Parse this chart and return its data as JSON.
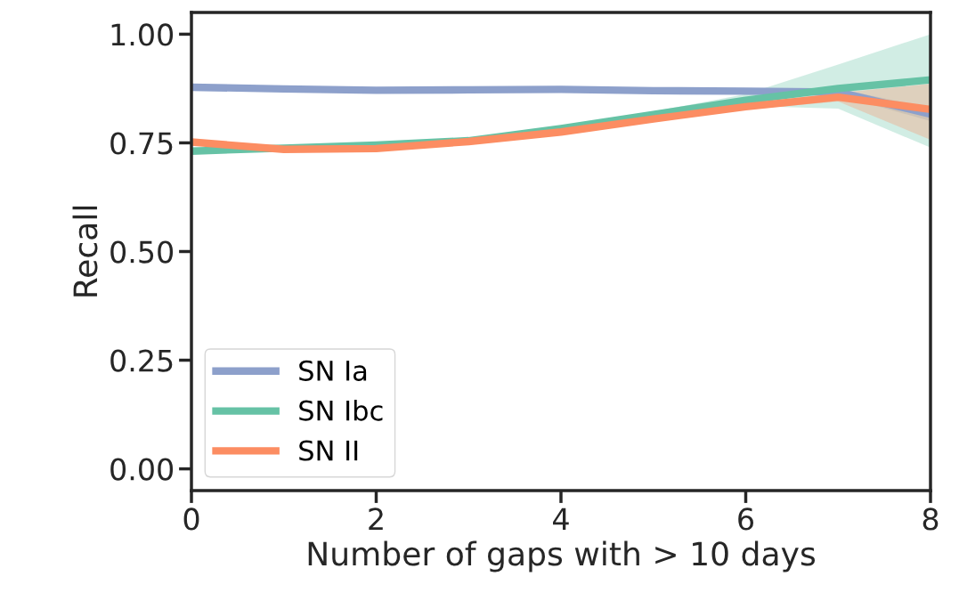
{
  "chart_data": {
    "type": "line",
    "xlabel": "Number of gaps with > 10 days",
    "ylabel": "Recall",
    "x": [
      0,
      1,
      2,
      3,
      4,
      5,
      6,
      7,
      8
    ],
    "xlim": [
      0,
      8
    ],
    "xticks": [
      0,
      2,
      4,
      6,
      8
    ],
    "ylim": [
      -0.05,
      1.05
    ],
    "yticks": [
      {
        "value": 0,
        "label": "0.00"
      },
      {
        "value": 0.25,
        "label": "0.25"
      },
      {
        "value": 0.5,
        "label": "0.50"
      },
      {
        "value": 0.75,
        "label": "0.75"
      },
      {
        "value": 1,
        "label": "1.00"
      }
    ],
    "grid": false,
    "legend": "bottom left",
    "line_style": "solid",
    "marker": "none",
    "series": [
      {
        "name": "SN Ia",
        "color": "#8da0cb",
        "values": [
          0.878,
          0.874,
          0.871,
          0.872,
          0.873,
          0.87,
          0.869,
          0.867,
          0.816
        ],
        "lower": [
          0.876,
          0.872,
          0.869,
          0.87,
          0.871,
          0.868,
          0.866,
          0.86,
          0.8
        ],
        "upper": [
          0.88,
          0.876,
          0.873,
          0.874,
          0.875,
          0.872,
          0.872,
          0.875,
          0.83
        ]
      },
      {
        "name": "SN Ibc",
        "color": "#66c2a5",
        "values": [
          0.731,
          0.738,
          0.745,
          0.755,
          0.783,
          0.815,
          0.848,
          0.875,
          0.895
        ],
        "lower": [
          0.727,
          0.734,
          0.741,
          0.751,
          0.779,
          0.808,
          0.835,
          0.829,
          0.739
        ],
        "upper": [
          0.735,
          0.742,
          0.749,
          0.759,
          0.787,
          0.822,
          0.862,
          0.93,
          1.0
        ]
      },
      {
        "name": "SN II",
        "color": "#fc8d62",
        "values": [
          0.752,
          0.735,
          0.737,
          0.753,
          0.775,
          0.805,
          0.833,
          0.855,
          0.827
        ],
        "lower": [
          0.749,
          0.732,
          0.734,
          0.75,
          0.772,
          0.8,
          0.826,
          0.845,
          0.757
        ],
        "upper": [
          0.755,
          0.738,
          0.74,
          0.756,
          0.778,
          0.81,
          0.84,
          0.865,
          0.886
        ]
      }
    ]
  }
}
